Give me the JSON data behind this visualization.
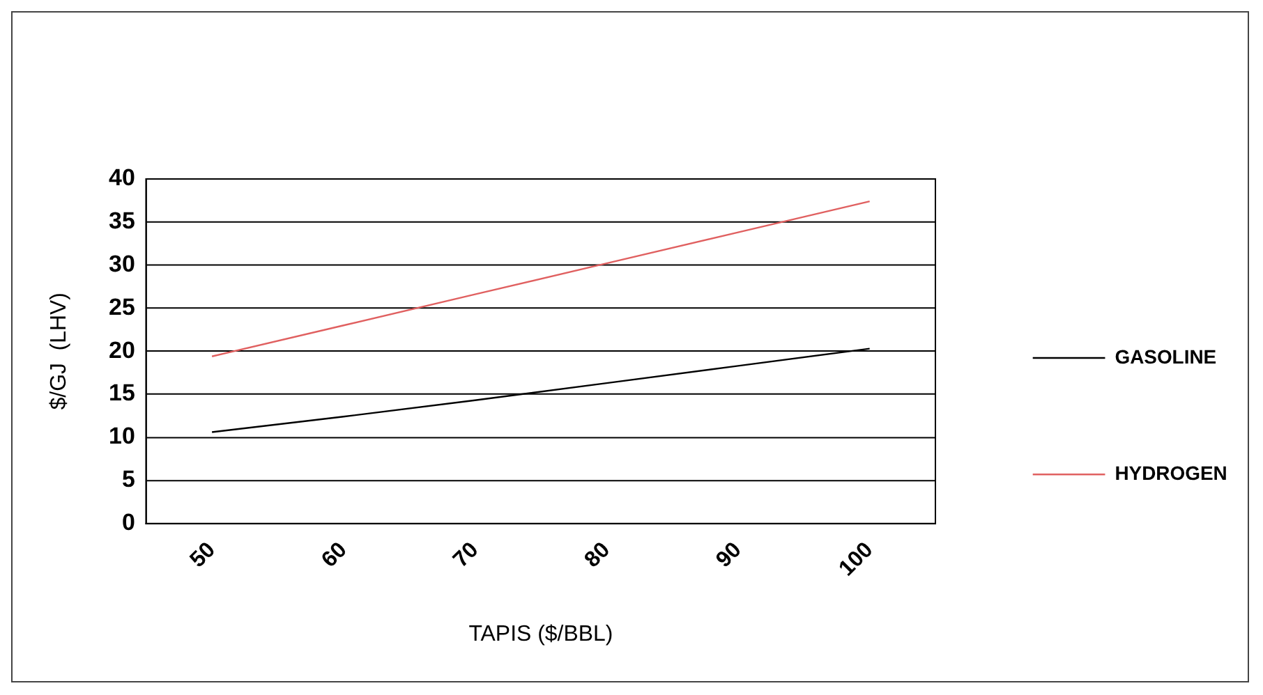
{
  "chart_data": {
    "type": "line",
    "xlabel": "TAPIS ($/BBL)",
    "ylabel": "$/GJ  (LHV)",
    "categories": [
      "50",
      "60",
      "70",
      "80",
      "90",
      "100"
    ],
    "series": [
      {
        "name": "GASOLINE",
        "color": "#000000",
        "values": [
          10.6,
          12.4,
          14.3,
          16.3,
          18.3,
          20.3
        ]
      },
      {
        "name": "HYDROGEN",
        "color": "#e06060",
        "values": [
          19.4,
          23.0,
          26.6,
          30.2,
          33.8,
          37.4
        ]
      }
    ],
    "ylim": [
      0,
      40
    ],
    "yticks": [
      0,
      5,
      10,
      15,
      20,
      25,
      30,
      35,
      40
    ],
    "grid": "y",
    "legend": "right",
    "marker": "none",
    "line_style": "solid"
  }
}
